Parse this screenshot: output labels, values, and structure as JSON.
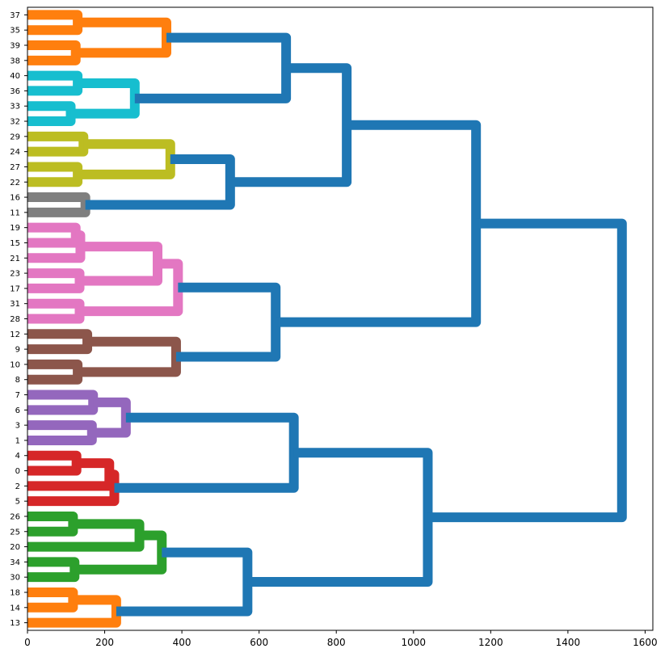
{
  "chart_data": {
    "type": "dendrogram",
    "orientation": "left",
    "title": "",
    "xlabel": "",
    "ylabel": "",
    "xlim": [
      0,
      1620
    ],
    "xticks": [
      0,
      200,
      400,
      600,
      800,
      1000,
      1200,
      1400,
      1600
    ],
    "leaf_labels": [
      "37",
      "35",
      "39",
      "38",
      "40",
      "36",
      "33",
      "32",
      "29",
      "24",
      "27",
      "22",
      "16",
      "11",
      "19",
      "15",
      "21",
      "23",
      "17",
      "31",
      "28",
      "12",
      "9",
      "10",
      "8",
      "7",
      "6",
      "3",
      "1",
      "4",
      "0",
      "2",
      "5",
      "26",
      "25",
      "20",
      "34",
      "30",
      "18",
      "14",
      "13"
    ],
    "colors": {
      "orange": "#ff7f0e",
      "cyan": "#17becf",
      "olive": "#bcbd22",
      "gray": "#7f7f7f",
      "pink": "#e377c2",
      "brown": "#8c564b",
      "purple": "#9467bd",
      "red": "#d62728",
      "green": "#2ca02c",
      "blue": "#1f77b4"
    },
    "links": [
      {
        "a": "L:37",
        "b": "L:35",
        "h": 130,
        "c": "orange",
        "id": "o1"
      },
      {
        "a": "L:39",
        "b": "L:38",
        "h": 125,
        "c": "orange",
        "id": "o2"
      },
      {
        "a": "N:o1",
        "b": "N:o2",
        "h": 360,
        "c": "orange",
        "id": "o3"
      },
      {
        "a": "L:40",
        "b": "L:36",
        "h": 130,
        "c": "cyan",
        "id": "c1"
      },
      {
        "a": "L:33",
        "b": "L:32",
        "h": 112,
        "c": "cyan",
        "id": "c2"
      },
      {
        "a": "N:c1",
        "b": "N:c2",
        "h": 278,
        "c": "cyan",
        "id": "c3"
      },
      {
        "a": "N:o3",
        "b": "N:c3",
        "h": 670,
        "c": "blue",
        "id": "b1"
      },
      {
        "a": "L:29",
        "b": "L:24",
        "h": 145,
        "c": "olive",
        "id": "y1"
      },
      {
        "a": "L:27",
        "b": "L:22",
        "h": 130,
        "c": "olive",
        "id": "y2"
      },
      {
        "a": "N:y1",
        "b": "N:y2",
        "h": 370,
        "c": "olive",
        "id": "y3"
      },
      {
        "a": "L:16",
        "b": "L:11",
        "h": 150,
        "c": "gray",
        "id": "g1"
      },
      {
        "a": "N:y3",
        "b": "N:g1",
        "h": 525,
        "c": "blue",
        "id": "b2"
      },
      {
        "a": "N:b1",
        "b": "N:b2",
        "h": 827,
        "c": "blue",
        "id": "b3"
      },
      {
        "a": "L:19",
        "b": "L:15",
        "h": 125,
        "c": "pink",
        "id": "p1"
      },
      {
        "a": "N:p1",
        "b": "L:21",
        "h": 137,
        "c": "pink",
        "id": "p2"
      },
      {
        "a": "L:23",
        "b": "L:17",
        "h": 135,
        "c": "pink",
        "id": "p3"
      },
      {
        "a": "N:p2",
        "b": "N:p3",
        "h": 337,
        "c": "pink",
        "id": "p4"
      },
      {
        "a": "L:31",
        "b": "L:28",
        "h": 135,
        "c": "pink",
        "id": "p5"
      },
      {
        "a": "N:p4",
        "b": "N:p5",
        "h": 390,
        "c": "pink",
        "id": "p6"
      },
      {
        "a": "L:12",
        "b": "L:9",
        "h": 155,
        "c": "brown",
        "id": "r1"
      },
      {
        "a": "L:10",
        "b": "L:8",
        "h": 130,
        "c": "brown",
        "id": "r2"
      },
      {
        "a": "N:r1",
        "b": "N:r2",
        "h": 385,
        "c": "brown",
        "id": "r3"
      },
      {
        "a": "N:p6",
        "b": "N:r3",
        "h": 643,
        "c": "blue",
        "id": "b4"
      },
      {
        "a": "N:b3",
        "b": "N:b4",
        "h": 1162,
        "c": "blue",
        "id": "b5"
      },
      {
        "a": "L:7",
        "b": "L:6",
        "h": 170,
        "c": "purple",
        "id": "u1"
      },
      {
        "a": "L:3",
        "b": "L:1",
        "h": 167,
        "c": "purple",
        "id": "u2"
      },
      {
        "a": "N:u1",
        "b": "N:u2",
        "h": 255,
        "c": "purple",
        "id": "u3"
      },
      {
        "a": "L:4",
        "b": "L:0",
        "h": 127,
        "c": "red",
        "id": "d1"
      },
      {
        "a": "N:d1",
        "b": "L:2",
        "h": 212,
        "c": "red",
        "id": "d2"
      },
      {
        "a": "N:d2",
        "b": "L:5",
        "h": 225,
        "c": "red",
        "id": "d3"
      },
      {
        "a": "N:u3",
        "b": "N:d3",
        "h": 690,
        "c": "blue",
        "id": "b6"
      },
      {
        "a": "L:26",
        "b": "L:25",
        "h": 118,
        "c": "green",
        "id": "e1"
      },
      {
        "a": "N:e1",
        "b": "L:20",
        "h": 290,
        "c": "green",
        "id": "e2"
      },
      {
        "a": "L:34",
        "b": "L:30",
        "h": 122,
        "c": "green",
        "id": "e3"
      },
      {
        "a": "N:e2",
        "b": "N:e3",
        "h": 348,
        "c": "green",
        "id": "e4"
      },
      {
        "a": "L:18",
        "b": "L:14",
        "h": 118,
        "c": "orange",
        "id": "o4"
      },
      {
        "a": "N:o4",
        "b": "L:13",
        "h": 230,
        "c": "orange",
        "id": "o5"
      },
      {
        "a": "N:e4",
        "b": "N:o5",
        "h": 570,
        "c": "blue",
        "id": "b7"
      },
      {
        "a": "N:b6",
        "b": "N:b7",
        "h": 1037,
        "c": "blue",
        "id": "b8"
      },
      {
        "a": "N:b5",
        "b": "N:b8",
        "h": 1540,
        "c": "blue",
        "id": "b9"
      }
    ]
  }
}
